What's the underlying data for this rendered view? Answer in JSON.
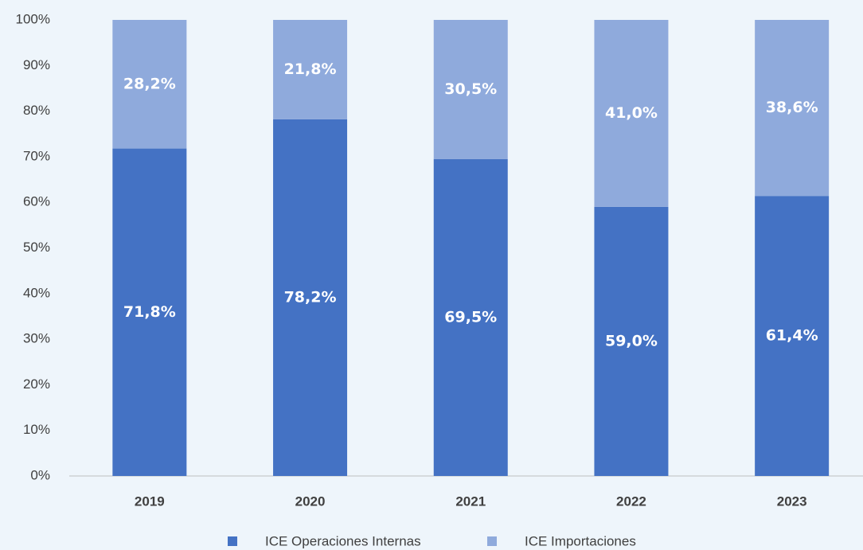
{
  "chart_data": {
    "type": "stacked_bar",
    "categories": [
      "2019",
      "2020",
      "2021",
      "2022",
      "2023"
    ],
    "series": [
      {
        "name": "ICE Operaciones Internas",
        "color": "#4472c4",
        "values": [
          71.8,
          78.2,
          69.5,
          59.0,
          61.4
        ],
        "value_labels": [
          "71,8%",
          "78,2%",
          "69,5%",
          "59,0%",
          "61,4%"
        ]
      },
      {
        "name": "ICE Importaciones",
        "color": "#8faadc",
        "values": [
          28.2,
          21.8,
          30.5,
          41.0,
          38.6
        ],
        "value_labels": [
          "28,2%",
          "21,8%",
          "30,5%",
          "41,0%",
          "38,6%"
        ]
      }
    ],
    "ylim": [
      0,
      100
    ],
    "yticks": [
      {
        "value": 0,
        "label": "0%"
      },
      {
        "value": 10,
        "label": "10%"
      },
      {
        "value": 20,
        "label": "20%"
      },
      {
        "value": 30,
        "label": "30%"
      },
      {
        "value": 40,
        "label": "40%"
      },
      {
        "value": 50,
        "label": "50%"
      },
      {
        "value": 60,
        "label": "60%"
      },
      {
        "value": 70,
        "label": "70%"
      },
      {
        "value": 80,
        "label": "80%"
      },
      {
        "value": 90,
        "label": "90%"
      },
      {
        "value": 100,
        "label": "100%"
      }
    ],
    "legend": "bottom"
  }
}
